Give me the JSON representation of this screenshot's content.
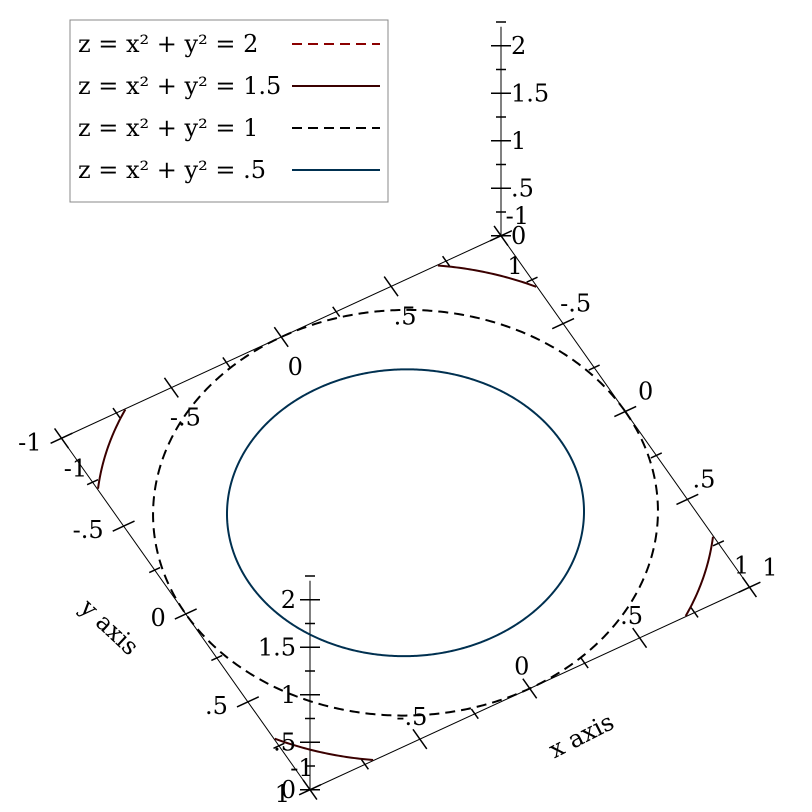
{
  "chart_data": {
    "type": "contour",
    "title": "",
    "xlabel": "x axis",
    "ylabel": "y axis",
    "zlabel": "",
    "xlim": [
      -1,
      1
    ],
    "ylim": [
      -1,
      1
    ],
    "zlim": [
      0,
      2
    ],
    "x_ticks": [
      "-1",
      "-.5",
      "0",
      ".5",
      "1"
    ],
    "y_ticks": [
      "-1",
      "-.5",
      "0",
      ".5",
      "1"
    ],
    "z_ticks": [
      "0",
      ".5",
      "1",
      "1.5",
      "2"
    ],
    "legend_position": "top-left",
    "series": [
      {
        "name": "z = x² + y² = 2",
        "level": 2,
        "color": "#8b0000",
        "dash": "dashed"
      },
      {
        "name": "z = x² + y² = 1.5",
        "level": 1.5,
        "color": "#3a0000",
        "dash": "solid"
      },
      {
        "name": "z = x² + y² = 1",
        "level": 1,
        "color": "#000000",
        "dash": "dashed"
      },
      {
        "name": "z = x² + y² = .5",
        "level": 0.5,
        "color": "#003050",
        "dash": "solid"
      }
    ]
  }
}
